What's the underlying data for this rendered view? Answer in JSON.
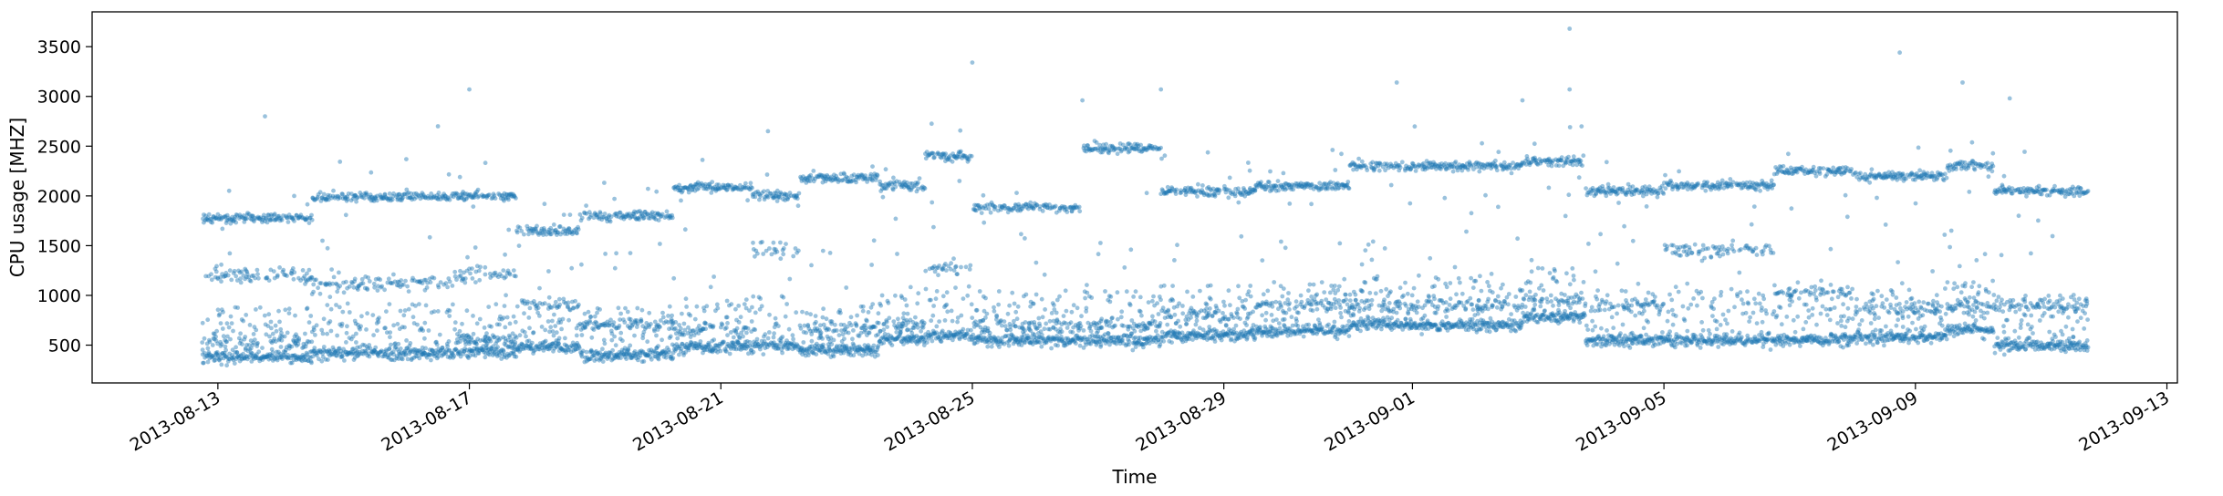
{
  "chart_data": {
    "type": "scatter",
    "title": "",
    "xlabel": "Time",
    "ylabel": "CPU usage [MHZ]",
    "x_axis": {
      "kind": "date",
      "range": [
        "2013-08-11T00:00",
        "2013-09-13T04:00"
      ],
      "ticks": [
        "2013-08-13",
        "2013-08-17",
        "2013-08-21",
        "2013-08-25",
        "2013-08-29",
        "2013-09-01",
        "2013-09-05",
        "2013-09-09",
        "2013-09-13"
      ]
    },
    "y_axis": {
      "range": [
        120,
        3850
      ],
      "ticks": [
        500,
        1000,
        1500,
        2000,
        2500,
        3000,
        3500
      ]
    },
    "grid": false,
    "legend": "none",
    "marker_color": "#1f77b4",
    "marker_alpha": 0.45,
    "x_start": "2013-08-12T18:00",
    "x_end": "2013-09-11T18:00",
    "bands": [
      {
        "from": "2013-08-12T18:00",
        "to": "2013-08-14T12:00",
        "levels": [
          1780,
          1200,
          530,
          380
        ]
      },
      {
        "from": "2013-08-14T12:00",
        "to": "2013-08-16T18:00",
        "levels": [
          1990,
          1120,
          420
        ]
      },
      {
        "from": "2013-08-16T18:00",
        "to": "2013-08-17T18:00",
        "levels": [
          2000,
          1200,
          550,
          430
        ]
      },
      {
        "from": "2013-08-17T18:00",
        "to": "2013-08-18T18:00",
        "levels": [
          1650,
          900,
          480
        ]
      },
      {
        "from": "2013-08-18T18:00",
        "to": "2013-08-20T06:00",
        "levels": [
          1800,
          700,
          400
        ]
      },
      {
        "from": "2013-08-20T06:00",
        "to": "2013-08-21T12:00",
        "levels": [
          2080,
          650,
          480
        ]
      },
      {
        "from": "2013-08-21T12:00",
        "to": "2013-08-22T06:00",
        "levels": [
          2000,
          1450,
          500
        ]
      },
      {
        "from": "2013-08-22T06:00",
        "to": "2013-08-23T12:00",
        "levels": [
          2180,
          650,
          450
        ]
      },
      {
        "from": "2013-08-23T12:00",
        "to": "2013-08-24T06:00",
        "levels": [
          2100,
          700,
          550
        ]
      },
      {
        "from": "2013-08-24T06:00",
        "to": "2013-08-25T00:00",
        "levels": [
          2400,
          1280,
          600
        ]
      },
      {
        "from": "2013-08-25T00:00",
        "to": "2013-08-26T18:00",
        "levels": [
          1880,
          700,
          550
        ]
      },
      {
        "from": "2013-08-26T18:00",
        "to": "2013-08-28T00:00",
        "levels": [
          2480,
          700,
          550
        ]
      },
      {
        "from": "2013-08-28T00:00",
        "to": "2013-08-29T12:00",
        "levels": [
          2050,
          800,
          600
        ]
      },
      {
        "from": "2013-08-29T12:00",
        "to": "2013-08-31T00:00",
        "levels": [
          2100,
          900,
          650
        ]
      },
      {
        "from": "2013-08-31T00:00",
        "to": "2013-09-02T18:00",
        "levels": [
          2300,
          900,
          700
        ]
      },
      {
        "from": "2013-09-02T18:00",
        "to": "2013-09-03T18:00",
        "levels": [
          2350,
          950,
          780
        ]
      },
      {
        "from": "2013-09-03T18:00",
        "to": "2013-09-05T00:00",
        "levels": [
          2050,
          900,
          550
        ]
      },
      {
        "from": "2013-09-05T00:00",
        "to": "2013-09-06T18:00",
        "levels": [
          2100,
          1450,
          550
        ]
      },
      {
        "from": "2013-09-06T18:00",
        "to": "2013-09-08T00:00",
        "levels": [
          2250,
          1050,
          550
        ]
      },
      {
        "from": "2013-09-08T00:00",
        "to": "2013-09-09T12:00",
        "levels": [
          2200,
          850,
          580
        ]
      },
      {
        "from": "2013-09-09T12:00",
        "to": "2013-09-10T06:00",
        "levels": [
          2300,
          900,
          650
        ]
      },
      {
        "from": "2013-09-10T06:00",
        "to": "2013-09-11T18:00",
        "levels": [
          2050,
          900,
          500
        ]
      }
    ],
    "outliers": [
      {
        "x": "2013-08-13T18:00",
        "y": 2800
      },
      {
        "x": "2013-08-16T12:00",
        "y": 2700
      },
      {
        "x": "2013-08-17T00:00",
        "y": 3070
      },
      {
        "x": "2013-08-21T18:00",
        "y": 2650
      },
      {
        "x": "2013-08-25T00:00",
        "y": 3340
      },
      {
        "x": "2013-08-26T18:00",
        "y": 2960
      },
      {
        "x": "2013-08-28T00:00",
        "y": 3070
      },
      {
        "x": "2013-08-31T18:00",
        "y": 3140
      },
      {
        "x": "2013-09-02T18:00",
        "y": 2960
      },
      {
        "x": "2013-09-03T12:00",
        "y": 3070
      },
      {
        "x": "2013-09-03T12:00",
        "y": 3680
      },
      {
        "x": "2013-09-08T18:00",
        "y": 3440
      },
      {
        "x": "2013-09-09T18:00",
        "y": 3140
      },
      {
        "x": "2013-09-10T12:00",
        "y": 2980
      }
    ]
  }
}
